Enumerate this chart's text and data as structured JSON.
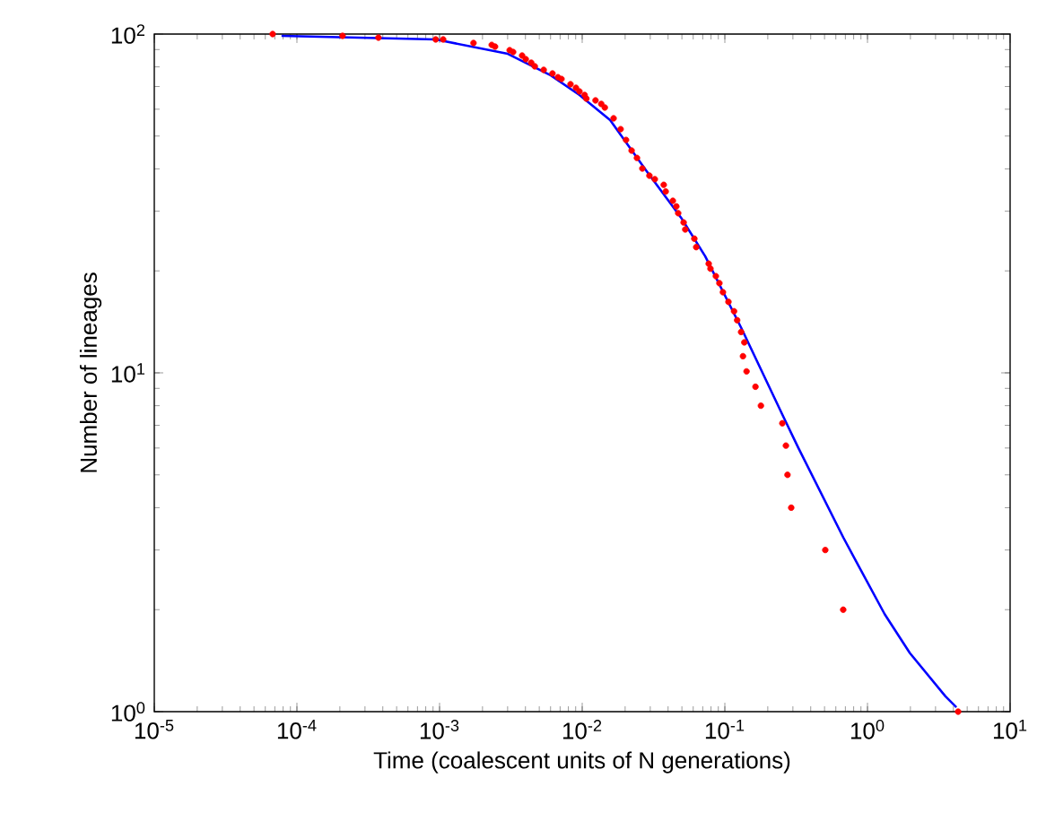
{
  "chart_data": {
    "type": "line",
    "xlabel": "Time (coalescent units of N generations)",
    "ylabel": "Number of lineages",
    "log": "xy",
    "xlim": [
      1e-05,
      10
    ],
    "ylim": [
      1,
      100
    ],
    "xticks": [
      {
        "value": 1e-05,
        "label": "10$^{-5}$"
      },
      {
        "value": 0.0001,
        "label": "10$^{-4}$"
      },
      {
        "value": 0.001,
        "label": "10$^{-3}$"
      },
      {
        "value": 0.01,
        "label": "10$^{-2}$"
      },
      {
        "value": 0.1,
        "label": "10$^{-1}$"
      },
      {
        "value": 1,
        "label": "10$^{0}$"
      },
      {
        "value": 10,
        "label": "10$^{1}$"
      }
    ],
    "yticks": [
      {
        "value": 1,
        "label": "10$^{0}$"
      },
      {
        "value": 10,
        "label": "10$^{1}$"
      },
      {
        "value": 100,
        "label": "10$^{2}$"
      }
    ],
    "series": [
      {
        "color": "#0000ff",
        "marker": "none",
        "x": [
          7.8e-05,
          0.00094,
          0.00301,
          0.00603,
          0.00957,
          0.0157,
          0.028,
          0.0499,
          0.0728,
          0.13,
          0.26,
          0.328,
          0.676,
          0.828,
          1.32,
          1.98,
          3.52,
          4.2
        ],
        "values": [
          98.8,
          96.4,
          87.4,
          75.5,
          66.1,
          55.7,
          39.6,
          28.5,
          22.1,
          13.6,
          7.35,
          6,
          3.27,
          2.79,
          1.94,
          1.49,
          1.11,
          1.03
        ]
      },
      {
        "type": "scatter",
        "marker": "circle",
        "color": "#ff0000",
        "x": [
          6.76e-05,
          0.000209,
          0.000373,
          0.00094,
          0.00106,
          0.00173,
          0.00232,
          0.00245,
          0.0031,
          0.00328,
          0.00379,
          0.00402,
          0.00439,
          0.00465,
          0.00537,
          0.00619,
          0.00676,
          0.00716,
          0.00828,
          0.00904,
          0.00957,
          0.0104,
          0.0107,
          0.0124,
          0.0136,
          0.0144,
          0.0166,
          0.0186,
          0.0203,
          0.0222,
          0.0242,
          0.0264,
          0.0296,
          0.0323,
          0.0373,
          0.0385,
          0.0432,
          0.0457,
          0.0471,
          0.0514,
          0.0528,
          0.0611,
          0.063,
          0.0771,
          0.0793,
          0.0865,
          0.0916,
          0.097,
          0.106,
          0.116,
          0.122,
          0.13,
          0.137,
          0.134,
          0.142,
          0.164,
          0.179,
          0.253,
          0.268,
          0.275,
          0.292,
          0.506,
          0.676,
          4.32
        ],
        "values": [
          100,
          98.8,
          97.6,
          96.4,
          96.4,
          94.1,
          92.9,
          91.8,
          89.6,
          88.5,
          86.4,
          84.3,
          82.3,
          80.3,
          78.4,
          76.5,
          74.6,
          73.7,
          71.1,
          69.4,
          67.7,
          66.1,
          64.5,
          63.7,
          62.2,
          60.7,
          56.4,
          52.4,
          48.7,
          45.3,
          43.1,
          40.1,
          38.2,
          37.3,
          35.9,
          34.3,
          32.2,
          31,
          29.6,
          27.8,
          26.5,
          24.9,
          23.5,
          21,
          20.3,
          19.3,
          18.4,
          17.3,
          16.2,
          15.2,
          14.3,
          13.2,
          12.3,
          11.2,
          10.1,
          9.1,
          8,
          7.1,
          6.1,
          5,
          4,
          3,
          2,
          1
        ]
      }
    ]
  }
}
